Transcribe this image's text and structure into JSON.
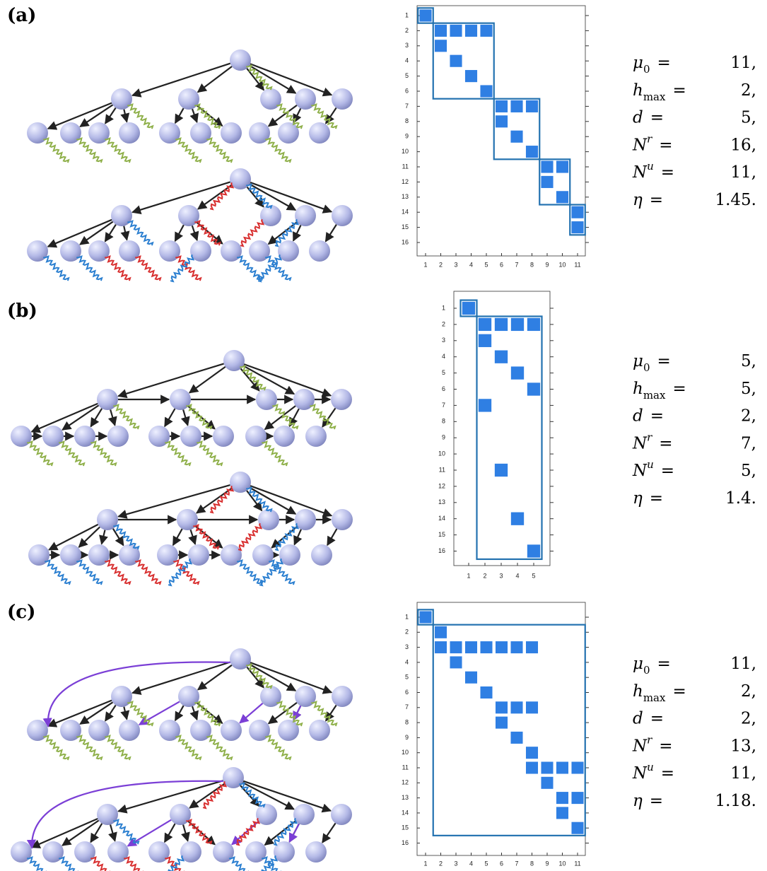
{
  "relation": "=",
  "panels": [
    {
      "label": "(a)",
      "matrix": {
        "row_ticks": [
          1,
          2,
          3,
          4,
          5,
          6,
          7,
          8,
          9,
          10,
          11,
          12,
          13,
          14,
          15,
          16
        ],
        "col_ticks": [
          1,
          2,
          3,
          4,
          5,
          6,
          7,
          8,
          9,
          10,
          11
        ],
        "cells": [
          [
            1,
            1
          ],
          [
            2,
            2
          ],
          [
            2,
            3
          ],
          [
            2,
            4
          ],
          [
            2,
            5
          ],
          [
            3,
            2
          ],
          [
            4,
            3
          ],
          [
            5,
            4
          ],
          [
            6,
            5
          ],
          [
            7,
            6
          ],
          [
            7,
            7
          ],
          [
            7,
            8
          ],
          [
            8,
            6
          ],
          [
            9,
            7
          ],
          [
            10,
            8
          ],
          [
            11,
            9
          ],
          [
            11,
            10
          ],
          [
            12,
            9
          ],
          [
            13,
            10
          ],
          [
            14,
            11
          ],
          [
            15,
            11
          ]
        ],
        "blocks": [
          [
            1,
            1,
            1,
            1
          ],
          [
            2,
            6,
            2,
            5
          ],
          [
            7,
            10,
            6,
            8
          ],
          [
            11,
            13,
            9,
            10
          ],
          [
            14,
            15,
            11,
            11
          ]
        ]
      },
      "params": [
        {
          "name": "μ",
          "sub": "0",
          "value": "11,"
        },
        {
          "name": "h",
          "sub": "max",
          "value": "2,"
        },
        {
          "name": "d",
          "value": "5,"
        },
        {
          "name": "N",
          "sup": "r",
          "value": "16,"
        },
        {
          "name": "N",
          "sup": "u",
          "value": "11,"
        },
        {
          "name": "η",
          "value": "1.45."
        }
      ]
    },
    {
      "label": "(b)",
      "matrix": {
        "row_ticks": [
          1,
          2,
          3,
          4,
          5,
          6,
          7,
          8,
          9,
          10,
          11,
          12,
          13,
          14,
          15,
          16
        ],
        "col_ticks": [
          1,
          2,
          3,
          4,
          5
        ],
        "cells": [
          [
            1,
            1
          ],
          [
            2,
            2
          ],
          [
            2,
            3
          ],
          [
            2,
            4
          ],
          [
            2,
            5
          ],
          [
            3,
            2
          ],
          [
            4,
            3
          ],
          [
            5,
            4
          ],
          [
            6,
            5
          ],
          [
            7,
            2
          ],
          [
            11,
            3
          ],
          [
            14,
            4
          ],
          [
            16,
            5
          ]
        ],
        "blocks": [
          [
            1,
            1,
            1,
            1
          ],
          [
            2,
            16,
            2,
            5
          ]
        ]
      },
      "params": [
        {
          "name": "μ",
          "sub": "0",
          "value": "5,"
        },
        {
          "name": "h",
          "sub": "max",
          "value": "5,"
        },
        {
          "name": "d",
          "value": "2,"
        },
        {
          "name": "N",
          "sup": "r",
          "value": "7,"
        },
        {
          "name": "N",
          "sup": "u",
          "value": "5,"
        },
        {
          "name": "η",
          "value": "1.4."
        }
      ]
    },
    {
      "label": "(c)",
      "matrix": {
        "row_ticks": [
          1,
          2,
          3,
          4,
          5,
          6,
          7,
          8,
          9,
          10,
          11,
          12,
          13,
          14,
          15,
          16
        ],
        "col_ticks": [
          1,
          2,
          3,
          4,
          5,
          6,
          7,
          8,
          9,
          10,
          11
        ],
        "cells": [
          [
            1,
            1
          ],
          [
            2,
            2
          ],
          [
            3,
            2
          ],
          [
            3,
            3
          ],
          [
            3,
            4
          ],
          [
            3,
            5
          ],
          [
            3,
            6
          ],
          [
            3,
            7
          ],
          [
            3,
            8
          ],
          [
            4,
            3
          ],
          [
            5,
            4
          ],
          [
            6,
            5
          ],
          [
            7,
            6
          ],
          [
            7,
            7
          ],
          [
            7,
            8
          ],
          [
            8,
            6
          ],
          [
            9,
            7
          ],
          [
            10,
            8
          ],
          [
            11,
            8
          ],
          [
            11,
            9
          ],
          [
            11,
            10
          ],
          [
            11,
            11
          ],
          [
            12,
            9
          ],
          [
            13,
            10
          ],
          [
            13,
            11
          ],
          [
            14,
            10
          ],
          [
            15,
            11
          ]
        ],
        "blocks": [
          [
            1,
            1,
            1,
            1
          ],
          [
            2,
            15,
            2,
            11
          ]
        ]
      },
      "params": [
        {
          "name": "μ",
          "sub": "0",
          "value": "11,"
        },
        {
          "name": "h",
          "sub": "max",
          "value": "2,"
        },
        {
          "name": "d",
          "value": "2,"
        },
        {
          "name": "N",
          "sup": "r",
          "value": "13,"
        },
        {
          "name": "N",
          "sup": "u",
          "value": "11,"
        },
        {
          "name": "η",
          "value": "1.18."
        }
      ]
    }
  ]
}
